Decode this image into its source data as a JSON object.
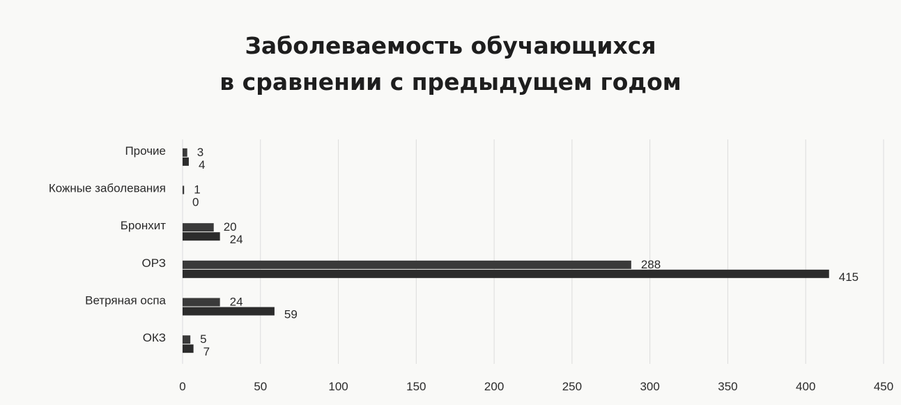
{
  "chart_data": {
    "type": "bar",
    "orientation": "horizontal",
    "title_lines": [
      "Заболеваемость обучающихся",
      "в сравнении с предыдущем годом"
    ],
    "categories": [
      "Прочие",
      "Кожные заболевания",
      "Бронхит",
      "ОРЗ",
      "Ветряная оспа",
      "ОКЗ"
    ],
    "series": [
      {
        "values": [
          3,
          1,
          20,
          288,
          24,
          5
        ],
        "color": "#3a3a3a"
      },
      {
        "values": [
          4,
          0,
          24,
          415,
          59,
          7
        ],
        "color": "#2c2c2c"
      }
    ],
    "xlim": [
      0,
      450
    ],
    "x_ticks": [
      0,
      50,
      100,
      150,
      200,
      250,
      300,
      350,
      400,
      450
    ],
    "grid": true,
    "legend": "none"
  }
}
